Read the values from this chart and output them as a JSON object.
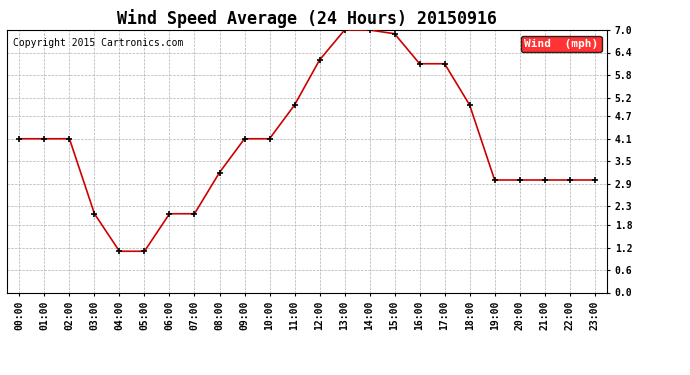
{
  "title": "Wind Speed Average (24 Hours) 20150916",
  "copyright": "Copyright 2015 Cartronics.com",
  "legend_label": "Wind  (mph)",
  "legend_bg": "#ff0000",
  "legend_text_color": "#ffffff",
  "x_labels": [
    "00:00",
    "01:00",
    "02:00",
    "03:00",
    "04:00",
    "05:00",
    "06:00",
    "07:00",
    "08:00",
    "09:00",
    "10:00",
    "11:00",
    "12:00",
    "13:00",
    "14:00",
    "15:00",
    "16:00",
    "17:00",
    "18:00",
    "19:00",
    "20:00",
    "21:00",
    "22:00",
    "23:00"
  ],
  "y_values": [
    4.1,
    4.1,
    4.1,
    2.1,
    1.1,
    1.1,
    2.1,
    2.1,
    3.2,
    4.1,
    4.1,
    5.0,
    6.2,
    7.0,
    7.0,
    6.9,
    6.1,
    6.1,
    5.0,
    3.0,
    3.0,
    3.0,
    3.0,
    3.0
  ],
  "line_color": "#cc0000",
  "marker_color": "#000000",
  "ylim_min": 0.0,
  "ylim_max": 7.0,
  "yticks": [
    0.0,
    0.6,
    1.2,
    1.8,
    2.3,
    2.9,
    3.5,
    4.1,
    4.7,
    5.2,
    5.8,
    6.4,
    7.0
  ],
  "background_color": "#ffffff",
  "plot_bg": "#ffffff",
  "grid_color": "#b0b0b0",
  "title_fontsize": 12,
  "copyright_fontsize": 7,
  "tick_fontsize": 7,
  "legend_fontsize": 8
}
